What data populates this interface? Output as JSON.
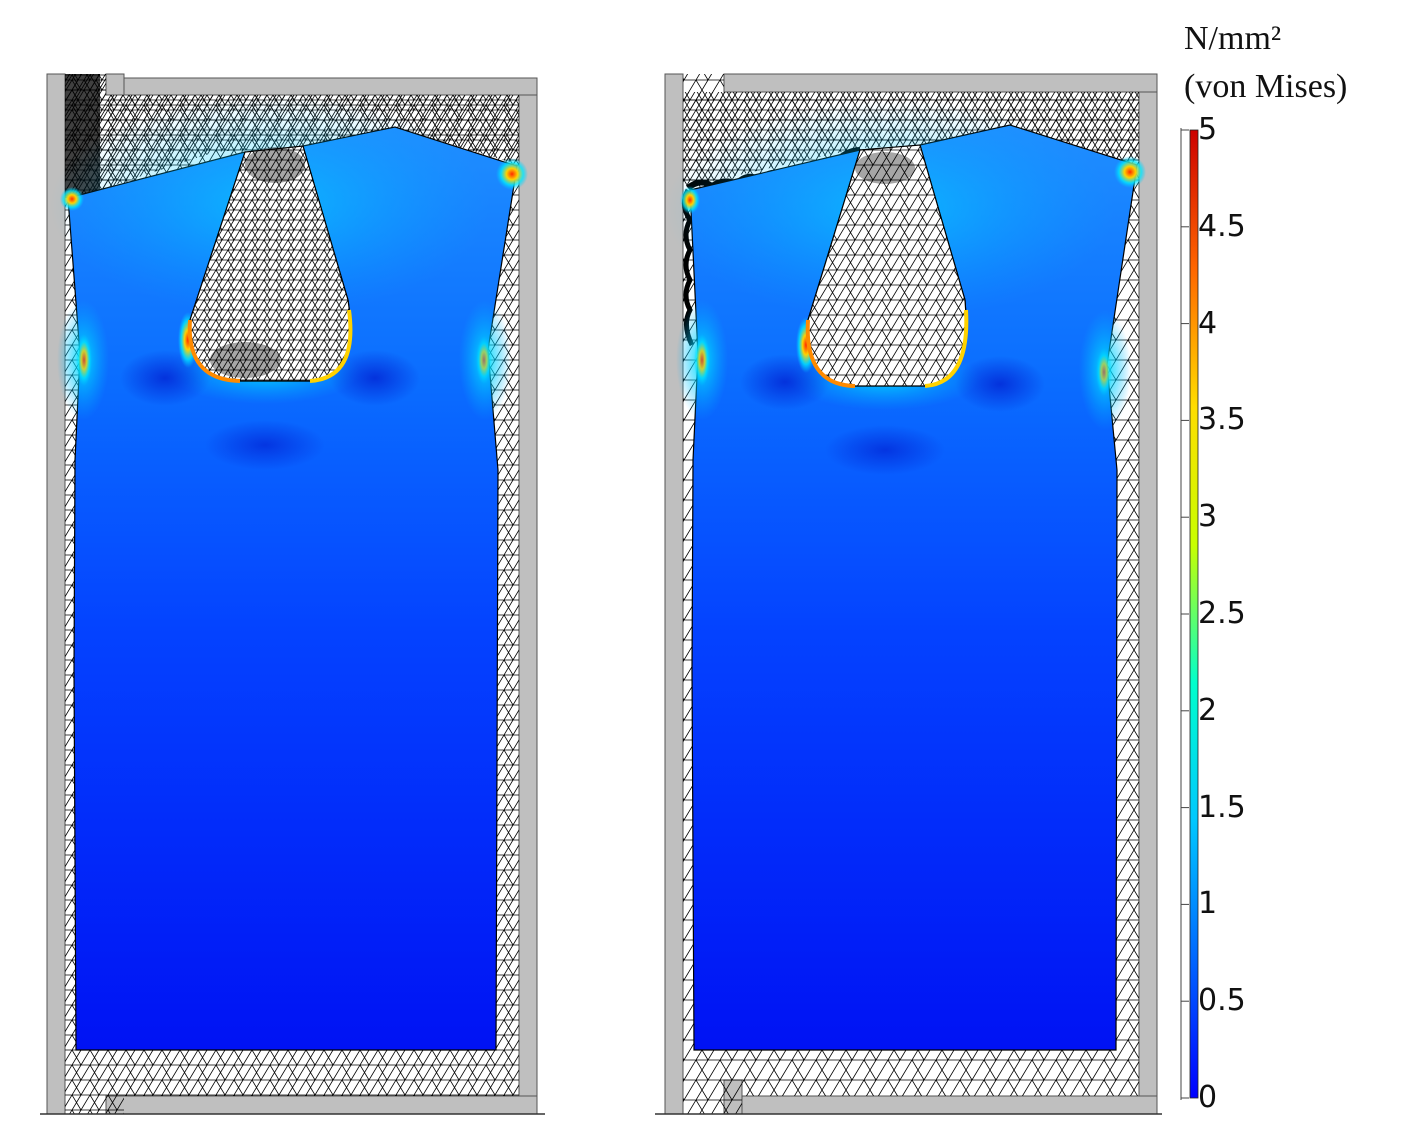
{
  "legend": {
    "unit_label": "N/mm²",
    "quantity_label": "(von Mises)",
    "min": 0,
    "max": 5,
    "ticks": [
      "0",
      "0.5",
      "1",
      "1.5",
      "2",
      "2.5",
      "3",
      "3.5",
      "4",
      "4.5",
      "5"
    ],
    "colormap": [
      "#0000ff",
      "#0066ff",
      "#00c8ff",
      "#00ffcc",
      "#c8ff00",
      "#ffdd00",
      "#ff6600",
      "#cc0000"
    ]
  },
  "panels": [
    {
      "mesh": "fine",
      "stress_field": "von Mises"
    },
    {
      "mesh": "coarse",
      "stress_field": "von Mises"
    }
  ],
  "colors": {
    "housing": "#bfbfbf",
    "mesh_line": "#000000",
    "background": "#ffffff"
  }
}
